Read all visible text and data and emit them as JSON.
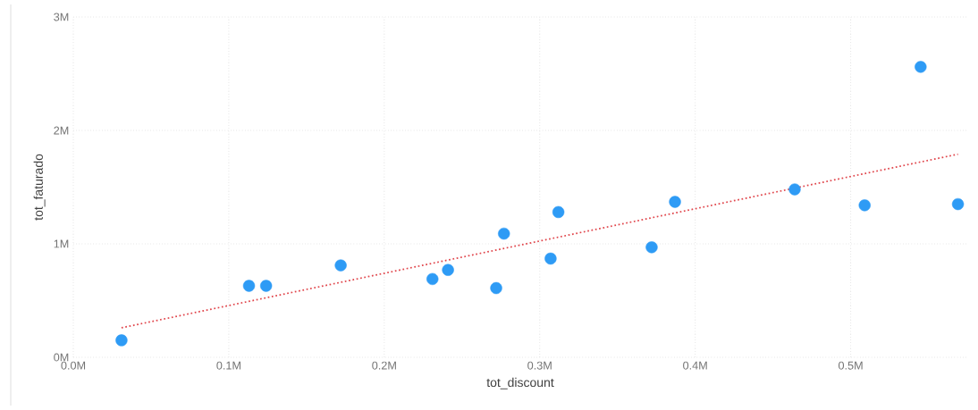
{
  "chart_data": {
    "type": "scatter",
    "xlabel": "tot_discount",
    "ylabel": "tot_faturado",
    "marker": "circle",
    "grid": true,
    "xlim": [
      0,
      0.575
    ],
    "ylim": [
      0,
      3
    ],
    "xticks": [
      {
        "value": 0,
        "label": "0.0M"
      },
      {
        "value": 0.1,
        "label": "0.1M"
      },
      {
        "value": 0.2,
        "label": "0.2M"
      },
      {
        "value": 0.3,
        "label": "0.3M"
      },
      {
        "value": 0.4,
        "label": "0.4M"
      },
      {
        "value": 0.5,
        "label": "0.5M"
      }
    ],
    "yticks": [
      {
        "value": 0,
        "label": "0M"
      },
      {
        "value": 1,
        "label": "1M"
      },
      {
        "value": 2,
        "label": "2M"
      },
      {
        "value": 3,
        "label": "3M"
      }
    ],
    "series": [
      {
        "color": "#2e9bf5",
        "x": [
          0.031,
          0.113,
          0.124,
          0.172,
          0.231,
          0.241,
          0.272,
          0.277,
          0.307,
          0.312,
          0.372,
          0.387,
          0.464,
          0.509,
          0.545,
          0.569
        ],
        "values": [
          0.15,
          0.63,
          0.63,
          0.81,
          0.69,
          0.77,
          0.61,
          1.09,
          0.87,
          1.28,
          0.97,
          1.37,
          1.48,
          1.34,
          2.56,
          1.35
        ]
      },
      {
        "type": "line",
        "marker": "none",
        "line_style": "dotted",
        "color": "#e0454b",
        "x": [
          0.031,
          0.569
        ],
        "values": [
          0.26,
          1.79
        ]
      }
    ]
  }
}
